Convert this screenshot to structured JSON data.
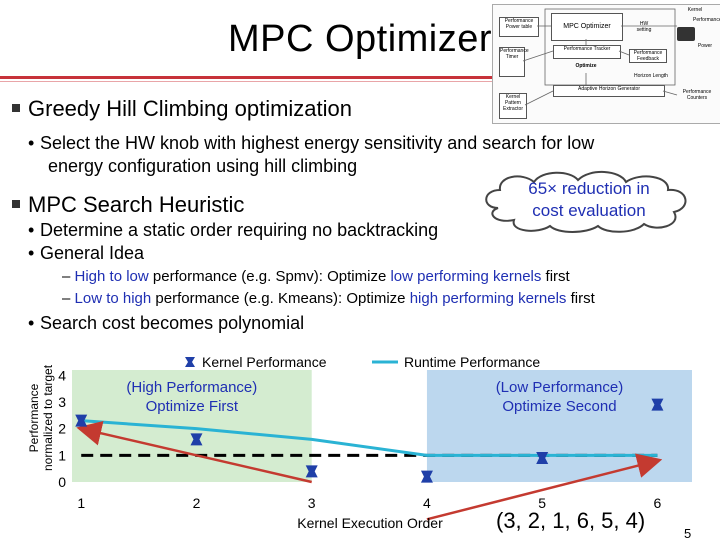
{
  "slide": {
    "title": "MPC Optimizer",
    "page_number": "5",
    "bullets": {
      "greedy": "Greedy Hill Climbing optimization",
      "greedy_sub": [
        "Select the HW knob with highest energy sensitivity and search for low",
        "energy configuration using hill climbing"
      ],
      "mpc": "MPC Search Heuristic",
      "mpc_sub1": "Determine a static order requiring no backtracking",
      "mpc_sub2": "General Idea",
      "dash1": {
        "a": "High to low",
        "b": " performance (e.g. Spmv): Optimize ",
        "c": "low performing kernels",
        "d": " first"
      },
      "dash2": {
        "a": "Low to high",
        "b": " performance (e.g. Kmeans): Optimize ",
        "c": "high performing kernels",
        "d": " first"
      },
      "mpc_sub3": "Search cost becomes polynomial"
    },
    "callout": [
      "65× reduction in",
      "cost evaluation"
    ],
    "order_text": "(3, 2, 1, 6, 5, 4)",
    "figure": {
      "labels": {
        "timer": "Performance Timer",
        "kernel": "Kernel",
        "perf": "Performance",
        "perf_power_table": "Performance Power table",
        "mpc_box": "MPC Optimizer",
        "hw_knob": "HW setting",
        "perf_tracker": "Performance Tracker",
        "perf_feedback": "Performance Feedback",
        "optimize": "Optimize",
        "adaptive": "Adaptive Horizon Generator",
        "kernel_pattern": "Kernel Pattern Extractor",
        "horizon": "Horizon Length",
        "perf_counters": "Performance Counters",
        "power": "Power"
      }
    }
  },
  "colors": {
    "title_rule": "#c7323a",
    "blue_text": "#1f2fb3",
    "perf_line": "#2ab3d4",
    "marker": "#1f3fa8",
    "arrow": "#c43a30",
    "region_blue": "#bcd7ee",
    "region_green": "#d4ecd0"
  },
  "chart_data": {
    "type": "scatter",
    "title": "",
    "xlabel": "Kernel Execution Order",
    "ylabel": "Performance normalized to target",
    "x_ticks": [
      "1",
      "2",
      "3",
      "4",
      "5",
      "6"
    ],
    "y_ticks": [
      "0",
      "1",
      "2",
      "3",
      "4"
    ],
    "xlim": [
      0.92,
      6.3
    ],
    "ylim": [
      0,
      4.2
    ],
    "legend": [
      "Kernel Performance",
      "Runtime Performance"
    ],
    "series": [
      {
        "name": "Kernel Performance",
        "x": [
          1,
          2,
          3,
          4,
          5,
          6
        ],
        "y": [
          2.3,
          1.6,
          0.4,
          0.2,
          0.9,
          2.9
        ]
      },
      {
        "name": "Runtime Performance",
        "x": [
          1,
          2,
          3,
          4,
          5,
          6
        ],
        "y": [
          2.3,
          2.0,
          1.6,
          1.0,
          1.0,
          1.0
        ]
      }
    ],
    "target_line": 1,
    "regions": [
      {
        "label": [
          "(High Performance)",
          "Optimize First"
        ],
        "from": 0.92,
        "to": 3.0,
        "color": "#d4ecd0"
      },
      {
        "label": [
          "(Low Performance)",
          "Optimize Second"
        ],
        "from": 4.0,
        "to": 6.3,
        "color": "#bcd7ee"
      }
    ],
    "arrows": [
      {
        "from": [
          3.0,
          0.0
        ],
        "to": [
          1.0,
          2.0
        ]
      },
      {
        "from": [
          4.0,
          -1.4
        ],
        "to": [
          6.0,
          0.8
        ]
      }
    ]
  }
}
